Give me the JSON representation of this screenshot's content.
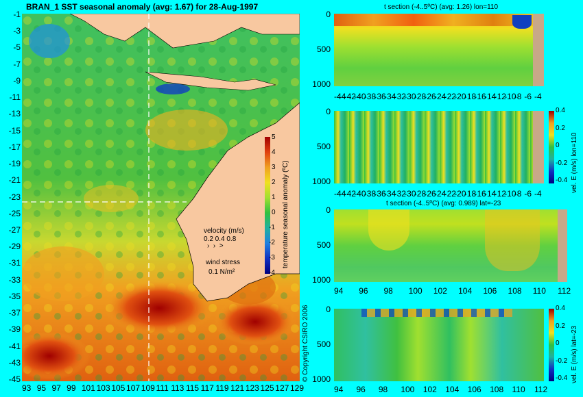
{
  "main_title": "BRAN_1  SST seasonal anomaly (avg: 1.67) for 28-Aug-1997",
  "copyright": "© Copyright CSIRO 2006",
  "colors": {
    "background": "#00ffff",
    "land": "#f8c8a0",
    "ocean_mid": "#30c040",
    "warm": "#f0a020",
    "hot": "#a00000",
    "cool": "#2090e0",
    "bathy": "#c8a888"
  },
  "chart_data": [
    {
      "type": "heatmap",
      "title": "BRAN_1  SST seasonal anomaly (avg: 1.67) for 28-Aug-1997",
      "x_ticks": [
        "93",
        "95",
        "97",
        "99",
        "101",
        "103",
        "105",
        "107",
        "109",
        "111",
        "113",
        "115",
        "117",
        "119",
        "121",
        "123",
        "125",
        "127",
        "129"
      ],
      "y_ticks": [
        "-1",
        "-3",
        "-5",
        "-7",
        "-9",
        "-11",
        "-13",
        "-15",
        "-17",
        "-19",
        "-21",
        "-23",
        "-25",
        "-27",
        "-29",
        "-31",
        "-33",
        "-35",
        "-37",
        "-39",
        "-41",
        "-43",
        "-45"
      ],
      "colorbar_label": "temperature seasonal anomaly (ºC)",
      "colorbar_ticks": [
        "5",
        "4",
        "3",
        "2",
        "1",
        "0",
        "-1",
        "-2",
        "-3",
        "-4"
      ],
      "colorbar_range": [
        -4,
        5
      ],
      "section_lines": {
        "lon": 110,
        "lat": -23
      },
      "legend": {
        "velocity_label": "velocity (m/s)",
        "velocity_scale": "0.2 0.4 0.8",
        "wind_label": "wind stress",
        "wind_scale": "0.1 N/m²"
      }
    },
    {
      "type": "heatmap",
      "title": "t section (-4..5ºC) (avg: 1.26) lon=110",
      "x_ticks": [
        "-44",
        "-42",
        "-40",
        "-38",
        "-36",
        "-34",
        "-32",
        "-30",
        "-28",
        "-26",
        "-24",
        "-22",
        "-20",
        "-18",
        "-16",
        "-14",
        "-12",
        "-10",
        "-8",
        "-6",
        "-4"
      ],
      "y_ticks": [
        "0",
        "500",
        "1000"
      ]
    },
    {
      "type": "heatmap",
      "title": "",
      "x_ticks": [
        "-44",
        "-42",
        "-40",
        "-38",
        "-36",
        "-34",
        "-32",
        "-30",
        "-28",
        "-26",
        "-24",
        "-22",
        "-20",
        "-18",
        "-16",
        "-14",
        "-12",
        "-10",
        "-8",
        "-6",
        "-4"
      ],
      "y_ticks": [
        "0",
        "500",
        "1000"
      ],
      "colorbar_label": "vel. E (m/s) lon=110",
      "colorbar_ticks": [
        "0.4",
        "0.2",
        "0",
        "-0.2",
        "-0.4"
      ]
    },
    {
      "type": "heatmap",
      "title": "t section (-4..5ºC) (avg: 0.989) lat=-23",
      "x_ticks": [
        "94",
        "96",
        "98",
        "100",
        "102",
        "104",
        "106",
        "108",
        "110",
        "112"
      ],
      "y_ticks": [
        "0",
        "500",
        "1000"
      ]
    },
    {
      "type": "heatmap",
      "title": "",
      "x_ticks": [
        "94",
        "96",
        "98",
        "100",
        "102",
        "104",
        "106",
        "108",
        "110",
        "112"
      ],
      "y_ticks": [
        "0",
        "500",
        "1000"
      ],
      "colorbar_label": "vel. E (m/s) lat=-23",
      "colorbar_ticks": [
        "0.4",
        "0.2",
        "0",
        "-0.2",
        "-0.4"
      ]
    }
  ]
}
